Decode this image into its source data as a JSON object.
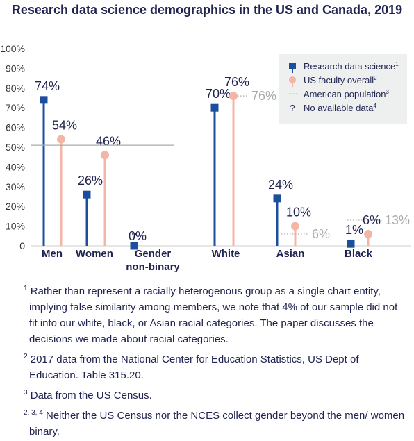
{
  "chart_data": {
    "type": "lollipop",
    "title": "Research data science demographics in the US and Canada, 2019",
    "categories": [
      "Men",
      "Women",
      "Gender non-binary",
      "White",
      "Asian",
      "Black"
    ],
    "series": [
      {
        "name": "Research data science",
        "footnote_mark": "1",
        "color": "#1b4f9c",
        "marker": "square",
        "values": [
          74,
          26,
          0,
          70,
          24,
          1
        ],
        "value_labels": [
          "74%",
          "26%",
          "0%",
          "70%",
          "24%",
          "1%"
        ]
      },
      {
        "name": "US faculty overall",
        "footnote_mark": "2",
        "color": "#f5b5a6",
        "marker": "circle",
        "values": [
          54,
          46,
          null,
          76,
          10,
          6
        ],
        "value_labels": [
          "54%",
          "46%",
          null,
          "76%",
          "10%",
          "6%"
        ]
      },
      {
        "name": "American population",
        "footnote_mark": "3",
        "color": "#aaaaaa",
        "marker": "reference-line",
        "values": [
          51,
          null,
          null,
          76,
          6,
          13
        ],
        "value_labels": [
          null,
          null,
          null,
          "76%",
          "6%",
          "13%"
        ]
      }
    ],
    "no_data": {
      "symbol": "?",
      "name": "No available data",
      "footnote_mark": "4"
    },
    "ylim": [
      0,
      100
    ],
    "yticks": [
      0,
      {
        "value": 10,
        "label": "10%"
      },
      {
        "value": 20,
        "label": "20%"
      },
      {
        "value": 30,
        "label": "30%"
      },
      {
        "value": 40,
        "label": "40%"
      },
      {
        "value": 50,
        "label": "50%"
      },
      {
        "value": 60,
        "label": "60%"
      },
      {
        "value": 70,
        "label": "70%"
      },
      {
        "value": 80,
        "label": "80%"
      },
      {
        "value": 90,
        "label": "90%"
      },
      {
        "value": 100,
        "label": "100%"
      }
    ],
    "grid": false,
    "legend": "top-right",
    "footnotes": [
      {
        "mark": "1",
        "text": "Rather than represent a racially heterogenous group as a single chart entity, implying false similarity among members, we note that 4% of our sample did not fit into our white, black, or Asian racial categories. The paper discusses the decisions we made about racial categories."
      },
      {
        "mark": "2",
        "text": "2017 data from the National Center for Education Statistics, US Dept of Education. Table 315.20."
      },
      {
        "mark": "3",
        "text": "Data from the US Census."
      },
      {
        "mark": "2, 3, 4",
        "text": "Neither the US Census nor the NCES collect gender beyond the men/ women binary."
      }
    ]
  }
}
